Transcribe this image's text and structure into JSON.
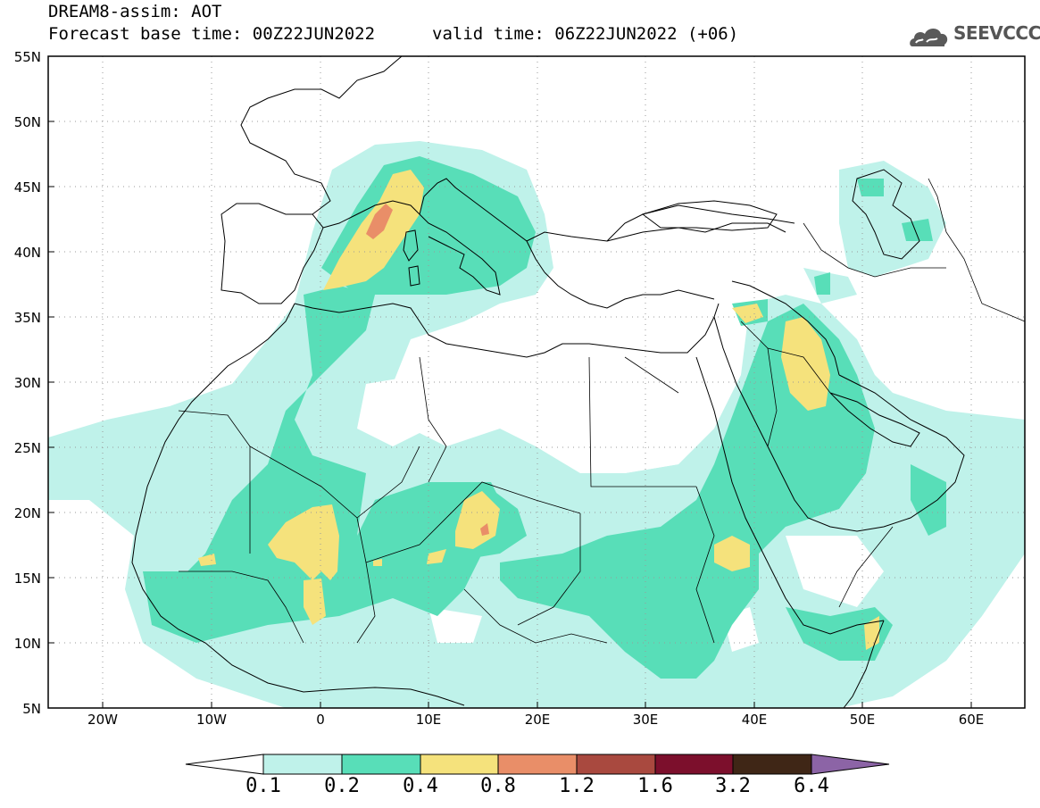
{
  "header": {
    "title_line1": "DREAM8-assim: AOT",
    "title_line2": "Forecast base time: 00Z22JUN2022",
    "title_line2b": "valid time: 06Z22JUN2022 (+06)",
    "logo_text": "SEEVCCC",
    "logo_icon": "cloud-icon"
  },
  "map": {
    "lat_labels": [
      "55N",
      "50N",
      "45N",
      "40N",
      "35N",
      "30N",
      "25N",
      "20N",
      "15N",
      "10N",
      "5N"
    ],
    "lon_labels": [
      "20W",
      "10W",
      "0",
      "10E",
      "20E",
      "30E",
      "40E",
      "50E",
      "60E"
    ],
    "lat_range": [
      5,
      55
    ],
    "lon_range": [
      -25,
      65
    ],
    "grid": "dotted"
  },
  "colorbar": {
    "labels": [
      "0.1",
      "0.2",
      "0.4",
      "0.8",
      "1.2",
      "1.6",
      "3.2",
      "6.4"
    ],
    "colors": [
      "#ffffff",
      "#bff2ea",
      "#58deb8",
      "#f5e27c",
      "#e98e68",
      "#a9493f",
      "#7c0f2c",
      "#3f2616",
      "#8c64a6"
    ]
  },
  "colors": {
    "level1": "#bff2ea",
    "level2": "#58deb8",
    "level3": "#f5e27c",
    "level4": "#e98e68"
  }
}
